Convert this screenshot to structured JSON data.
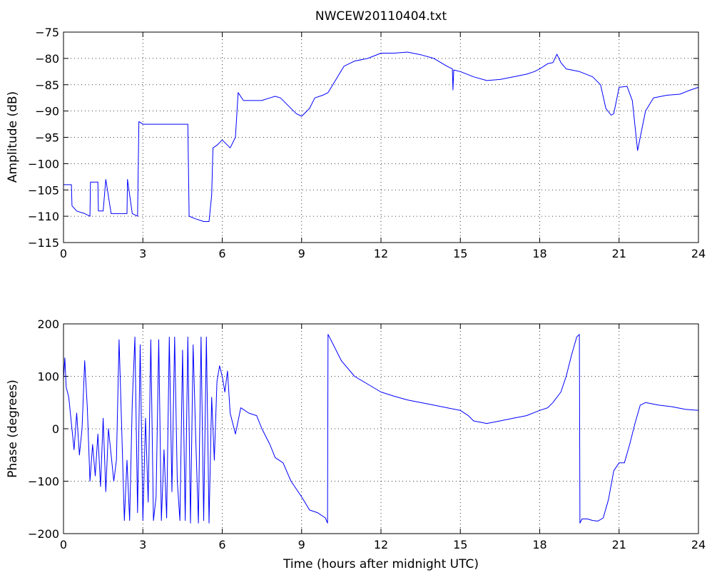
{
  "title": "NWCEW20110404.txt",
  "colors": {
    "trace": "#0000ff",
    "axes": "#000000",
    "background": "#ffffff"
  },
  "chart_data": [
    {
      "type": "line",
      "xlabel": "",
      "ylabel": "Amplitude (dB)",
      "xlim": [
        0,
        24
      ],
      "ylim": [
        -115,
        -75
      ],
      "xticks": [
        0,
        3,
        6,
        9,
        12,
        15,
        18,
        21,
        24
      ],
      "xtick_labels": [
        "0",
        "3",
        "6",
        "9",
        "12",
        "15",
        "18",
        "21",
        "24"
      ],
      "yticks": [
        -75,
        -80,
        -85,
        -90,
        -95,
        -100,
        -105,
        -110,
        -115
      ],
      "ytick_labels": [
        "−75",
        "−80",
        "−85",
        "−90",
        "−95",
        "−100",
        "−105",
        "−110",
        "−115"
      ],
      "grid": true,
      "series": [
        {
          "color": "#0000ff",
          "x": [
            0,
            0.05,
            0.3,
            0.32,
            0.5,
            0.8,
            1.0,
            1.02,
            1.2,
            1.3,
            1.32,
            1.5,
            1.6,
            1.8,
            2.0,
            2.3,
            2.4,
            2.42,
            2.6,
            2.8,
            2.85,
            3.0,
            3.5,
            4.0,
            4.5,
            4.7,
            4.75,
            5.0,
            5.3,
            5.5,
            5.6,
            5.65,
            5.8,
            6.0,
            6.3,
            6.5,
            6.6,
            6.8,
            7.0,
            7.5,
            7.8,
            8.0,
            8.2,
            8.5,
            8.8,
            9.0,
            9.3,
            9.5,
            9.8,
            10.0,
            10.3,
            10.6,
            11.0,
            11.5,
            12.0,
            12.5,
            13.0,
            13.5,
            14.0,
            14.5,
            14.7,
            14.72,
            14.75,
            15.0,
            15.5,
            16.0,
            16.5,
            17.0,
            17.5,
            17.8,
            18.0,
            18.3,
            18.5,
            18.65,
            18.8,
            19.0,
            19.5,
            20.0,
            20.3,
            20.5,
            20.7,
            20.8,
            21.0,
            21.3,
            21.5,
            21.7,
            21.8,
            22.0,
            22.3,
            22.8,
            23.3,
            23.7,
            24.0
          ],
          "values": [
            -104,
            -104,
            -104,
            -108,
            -109,
            -109.5,
            -110,
            -103.5,
            -103.5,
            -103.5,
            -109,
            -109,
            -103,
            -109.5,
            -109.5,
            -109.5,
            -109.5,
            -103,
            -109.5,
            -110,
            -92,
            -92.5,
            -92.5,
            -92.5,
            -92.5,
            -92.5,
            -110,
            -110.5,
            -111,
            -111,
            -106,
            -97,
            -96.5,
            -95.5,
            -97,
            -95,
            -86.5,
            -88,
            -88,
            -88,
            -87.5,
            -87.2,
            -87.5,
            -89,
            -90.5,
            -91,
            -89.5,
            -87.5,
            -87,
            -86.5,
            -84,
            -81.5,
            -80.5,
            -80,
            -79,
            -79,
            -78.8,
            -79.3,
            -80,
            -81.5,
            -82,
            -86,
            -82.2,
            -82.5,
            -83.5,
            -84.2,
            -84,
            -83.5,
            -83,
            -82.5,
            -82,
            -81,
            -80.8,
            -79.2,
            -80.8,
            -82,
            -82.5,
            -83.5,
            -85,
            -89.5,
            -90.8,
            -90.5,
            -85.5,
            -85.3,
            -88,
            -97.5,
            -95,
            -90,
            -87.5,
            -87,
            -86.8,
            -86,
            -85.5
          ]
        }
      ]
    },
    {
      "type": "line",
      "xlabel": "Time (hours after midnight UTC)",
      "ylabel": "Phase (degrees)",
      "xlim": [
        0,
        24
      ],
      "ylim": [
        -200,
        200
      ],
      "xticks": [
        0,
        3,
        6,
        9,
        12,
        15,
        18,
        21,
        24
      ],
      "xtick_labels": [
        "0",
        "3",
        "6",
        "9",
        "12",
        "15",
        "18",
        "21",
        "24"
      ],
      "yticks": [
        200,
        100,
        0,
        -100,
        -200
      ],
      "ytick_labels": [
        "200",
        "100",
        "0",
        "−100",
        "−200"
      ],
      "grid": true,
      "series": [
        {
          "color": "#0000ff",
          "x": [
            0,
            0.05,
            0.1,
            0.2,
            0.3,
            0.4,
            0.5,
            0.6,
            0.7,
            0.8,
            0.9,
            1.0,
            1.1,
            1.2,
            1.3,
            1.4,
            1.5,
            1.6,
            1.7,
            1.8,
            1.9,
            2.0,
            2.1,
            2.2,
            2.3,
            2.4,
            2.5,
            2.6,
            2.7,
            2.8,
            2.9,
            3.0,
            3.1,
            3.2,
            3.3,
            3.4,
            3.5,
            3.6,
            3.7,
            3.8,
            3.9,
            4.0,
            4.1,
            4.2,
            4.3,
            4.4,
            4.5,
            4.6,
            4.7,
            4.8,
            4.9,
            5.0,
            5.1,
            5.2,
            5.3,
            5.4,
            5.5,
            5.6,
            5.7,
            5.8,
            5.9,
            6.0,
            6.1,
            6.2,
            6.3,
            6.5,
            6.7,
            7.0,
            7.3,
            7.5,
            7.8,
            8.0,
            8.3,
            8.6,
            9.0,
            9.3,
            9.6,
            9.9,
            9.98,
            10.0,
            10.2,
            10.5,
            11.0,
            11.5,
            12.0,
            12.5,
            13.0,
            13.5,
            14.0,
            14.5,
            15.0,
            15.3,
            15.5,
            16.0,
            16.5,
            17.0,
            17.5,
            18.0,
            18.3,
            18.5,
            18.8,
            19.0,
            19.2,
            19.4,
            19.5,
            19.52,
            19.6,
            19.8,
            20.0,
            20.2,
            20.4,
            20.6,
            20.8,
            21.0,
            21.2,
            21.4,
            21.6,
            21.8,
            22.0,
            22.5,
            23.0,
            23.5,
            24.0
          ],
          "values": [
            95,
            135,
            80,
            60,
            10,
            -40,
            30,
            -50,
            0,
            130,
            40,
            -100,
            -30,
            -90,
            -10,
            -110,
            20,
            -120,
            0,
            -50,
            -100,
            -60,
            170,
            0,
            -175,
            -60,
            -175,
            50,
            175,
            -160,
            160,
            -175,
            20,
            -140,
            170,
            -175,
            -130,
            170,
            -175,
            -40,
            -170,
            175,
            -120,
            175,
            -100,
            -175,
            150,
            -175,
            175,
            -180,
            160,
            -20,
            -180,
            175,
            -175,
            175,
            -180,
            60,
            -60,
            90,
            120,
            100,
            70,
            110,
            30,
            -10,
            40,
            30,
            25,
            0,
            -30,
            -55,
            -65,
            -100,
            -130,
            -155,
            -160,
            -170,
            -180,
            180,
            160,
            130,
            100,
            85,
            70,
            62,
            55,
            50,
            45,
            40,
            35,
            25,
            15,
            10,
            15,
            20,
            25,
            35,
            40,
            50,
            70,
            100,
            140,
            175,
            180,
            -180,
            -172,
            -172,
            -175,
            -176,
            -170,
            -135,
            -80,
            -65,
            -65,
            -30,
            10,
            45,
            50,
            45,
            42,
            37,
            35
          ]
        }
      ]
    }
  ]
}
